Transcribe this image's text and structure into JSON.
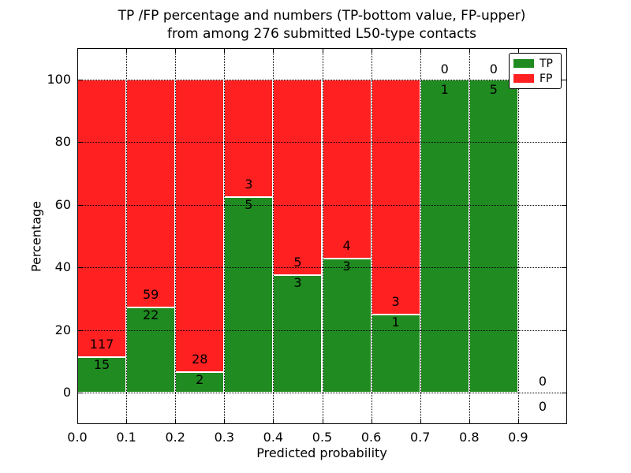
{
  "chart_data": {
    "type": "bar",
    "stacked": true,
    "title_line1": "TP /FP percentage and numbers (TP-bottom value, FP-upper)",
    "title_line2": "from among 276 submitted L50-type contacts",
    "xlabel": "Predicted probability",
    "ylabel": "Percentage",
    "total_contacts": 276,
    "categories": [
      "0.0-0.1",
      "0.1-0.2",
      "0.2-0.3",
      "0.3-0.4",
      "0.4-0.5",
      "0.5-0.6",
      "0.6-0.7",
      "0.7-0.8",
      "0.8-0.9",
      "0.9-1.0"
    ],
    "series": [
      {
        "name": "TP",
        "color": "#208b20",
        "counts": [
          15,
          22,
          2,
          5,
          3,
          3,
          1,
          1,
          5,
          0
        ]
      },
      {
        "name": "FP",
        "color": "#ff2121",
        "counts": [
          117,
          59,
          28,
          3,
          5,
          4,
          3,
          0,
          0,
          0
        ]
      }
    ],
    "bar_heights_percent_tp": [
      11.36,
      27.16,
      6.67,
      62.5,
      37.5,
      42.86,
      25.0,
      100.0,
      100.0,
      0
    ],
    "xticks": [
      "0.0",
      "0.1",
      "0.2",
      "0.3",
      "0.4",
      "0.5",
      "0.6",
      "0.7",
      "0.8",
      "0.9"
    ],
    "yticks": [
      "0",
      "20",
      "40",
      "60",
      "80",
      "100"
    ],
    "xlim": [
      0.0,
      1.0
    ],
    "ylim": [
      -10,
      110
    ],
    "grid": "dotted",
    "legend": {
      "position": "upper right",
      "entries": [
        "TP",
        "FP"
      ]
    }
  },
  "colors": {
    "tp_green": "#208b20",
    "fp_red": "#ff2121",
    "background": "#ffffff",
    "axis": "#000000"
  }
}
